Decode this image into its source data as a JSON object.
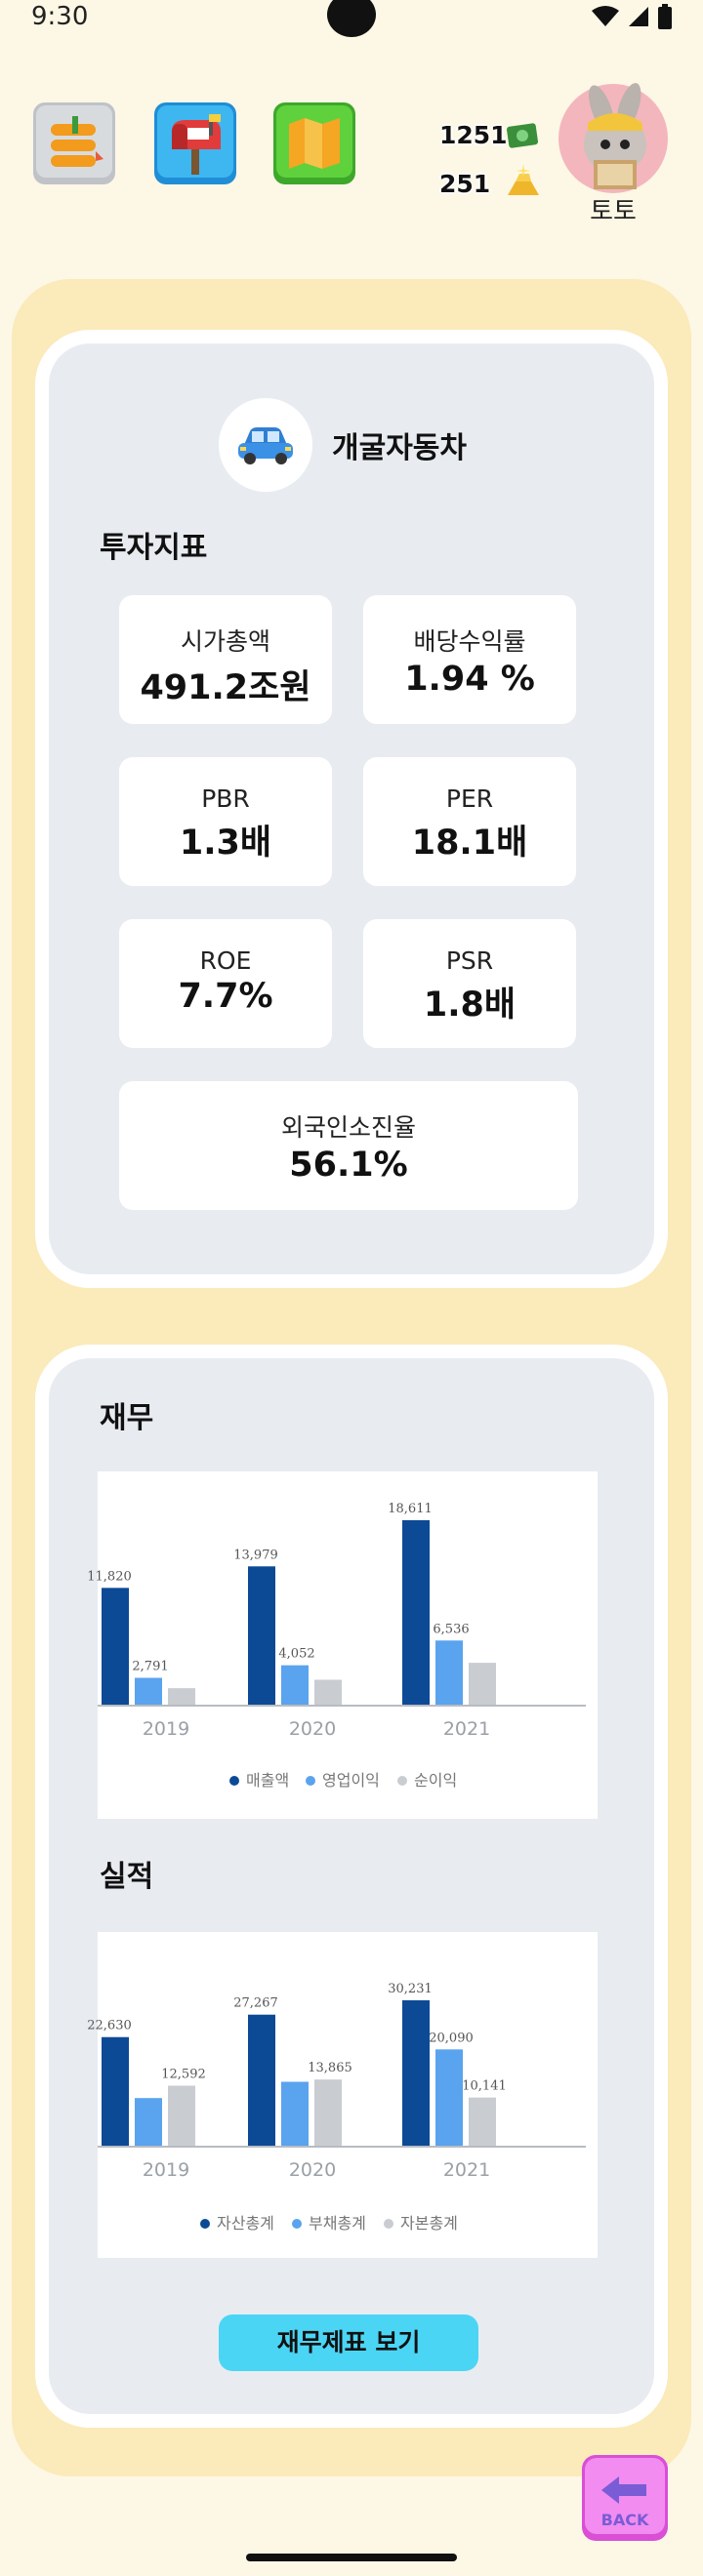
{
  "status_bar": {
    "time": "9:30"
  },
  "header": {
    "icons": [
      "notes-icon",
      "mailbox-icon",
      "map-icon"
    ],
    "coins": "1251",
    "gold": "251",
    "user_name": "토토"
  },
  "company": {
    "name": "개굴자동차",
    "icon": "car-icon"
  },
  "investment": {
    "title": "투자지표",
    "metrics": [
      {
        "label": "시가총액",
        "value": "491.2조원"
      },
      {
        "label": "배당수익률",
        "value": "1.94 %"
      },
      {
        "label": "PBR",
        "value": "1.3배"
      },
      {
        "label": "PER",
        "value": "18.1배"
      },
      {
        "label": "ROE",
        "value": "7.7%"
      },
      {
        "label": "PSR",
        "value": "1.8배"
      },
      {
        "label": "외국인소진율",
        "value": "56.1%"
      }
    ]
  },
  "finance": {
    "title": "재무",
    "button_label": "재무제표 보기"
  },
  "performance": {
    "title": "실적"
  },
  "back_label": "BACK",
  "colors": {
    "dark_blue": "#0d4a96",
    "light_blue": "#5aa3ee",
    "gray": "#c9ccd1"
  },
  "chart_data": [
    {
      "type": "bar",
      "categories": [
        "2019",
        "2020",
        "2021"
      ],
      "series": [
        {
          "name": "매출액",
          "values": [
            11820,
            13979,
            18611
          ],
          "labels": [
            "11,820",
            "13,979",
            "18,611"
          ]
        },
        {
          "name": "영업이익",
          "values": [
            2791,
            4052,
            6536
          ],
          "labels": [
            "2,791",
            "4,052",
            "6,536"
          ]
        },
        {
          "name": "순이익",
          "values": [
            1750,
            2600,
            4300
          ],
          "labels": [
            "",
            "",
            ""
          ]
        }
      ],
      "legend": "bottom-right"
    },
    {
      "type": "bar",
      "categories": [
        "2019",
        "2020",
        "2021"
      ],
      "series": [
        {
          "name": "자산총계",
          "values": [
            22630,
            27267,
            30231
          ],
          "labels": [
            "22,630",
            "27,267",
            "30,231"
          ]
        },
        {
          "name": "부채총계",
          "values": [
            10038,
            13402,
            20090
          ],
          "labels": [
            "",
            "",
            "20,090"
          ]
        },
        {
          "name": "자본총계",
          "values": [
            12592,
            13865,
            10141
          ],
          "labels": [
            "12,592",
            "13,865",
            "10,141"
          ]
        }
      ],
      "legend": "bottom-right"
    }
  ]
}
